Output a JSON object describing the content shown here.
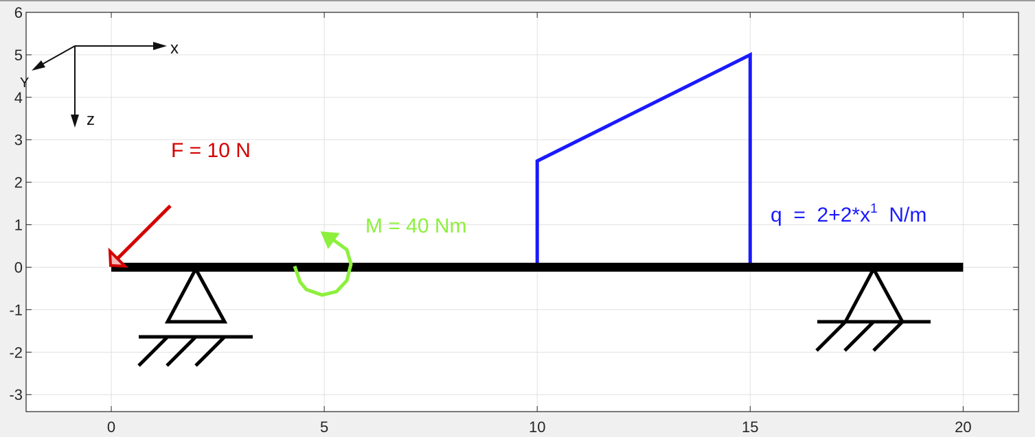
{
  "axes": {
    "xlim": [
      -2,
      21.3
    ],
    "ylim": [
      -3.4,
      6
    ],
    "x_ticks": [
      "0",
      "5",
      "10",
      "15",
      "20"
    ],
    "x_tick_values": [
      0,
      5,
      10,
      15,
      20
    ],
    "y_ticks": [
      "6",
      "5",
      "4",
      "3",
      "2",
      "1",
      "0",
      "-1",
      "-2",
      "-3"
    ],
    "y_tick_values": [
      6,
      5,
      4,
      3,
      2,
      1,
      0,
      -1,
      -2,
      -3
    ],
    "grid": true
  },
  "coordinate_system": {
    "x_label": "x",
    "y_label": "Y",
    "z_label": "z"
  },
  "beam": {
    "x_start": 0,
    "x_end": 20,
    "color": "#000000"
  },
  "supports": [
    {
      "type": "pin",
      "x": 2
    },
    {
      "type": "roller",
      "x": 18
    }
  ],
  "force": {
    "label": "F = 10 N",
    "x": 0,
    "color": "#d40000"
  },
  "moment": {
    "label": "M = 40 Nm",
    "x": 5,
    "color": "#8cf03c"
  },
  "distributed_load": {
    "label_prefix": "q  =  2+2*x",
    "label_exponent": "1",
    "label_suffix": "  N/m",
    "x_start": 10,
    "x_end": 15,
    "q_start_height": 2.5,
    "q_end_height": 5,
    "color": "#1a1aff"
  },
  "colors": {
    "axes_bg": "#ffffff",
    "figure_bg": "#f0f0f0",
    "grid": "#e0e0e0",
    "axis": "#262626"
  }
}
